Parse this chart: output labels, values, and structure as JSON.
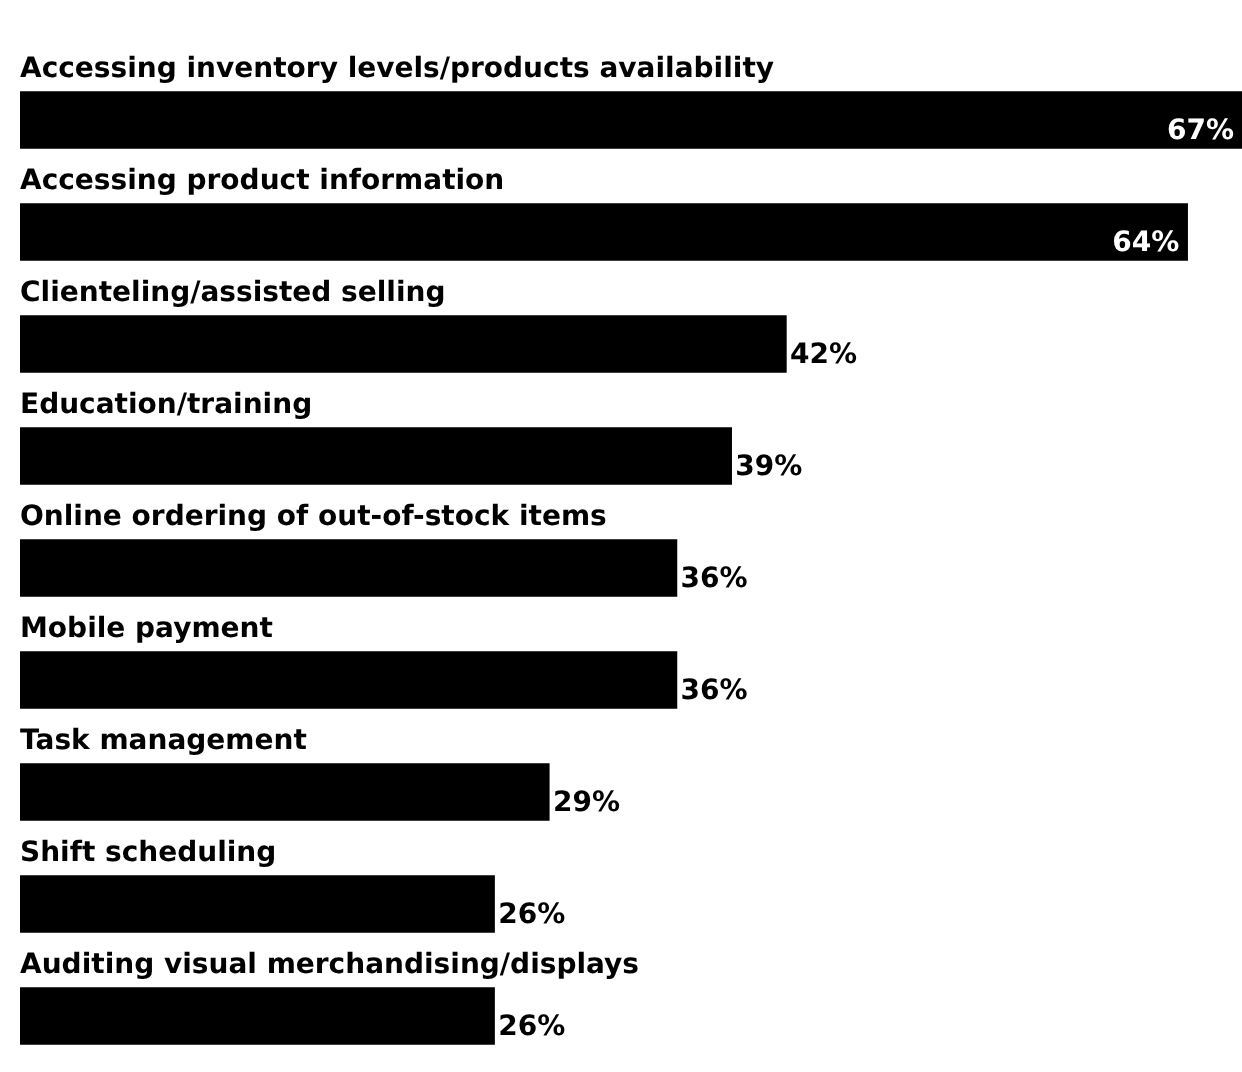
{
  "chart_data": {
    "type": "bar",
    "orientation": "horizontal",
    "categories": [
      "Accessing inventory levels/products availability",
      "Accessing product information",
      "Clienteling/assisted selling",
      "Education/training",
      "Online ordering of out-of-stock items",
      "Mobile payment",
      "Task management",
      "Shift scheduling",
      "Auditing visual merchandising/displays"
    ],
    "values": [
      67,
      64,
      42,
      39,
      36,
      36,
      29,
      26,
      26
    ],
    "value_labels": [
      "67%",
      "64%",
      "42%",
      "39%",
      "36%",
      "36%",
      "29%",
      "26%",
      "26%"
    ],
    "color": "#000000"
  }
}
